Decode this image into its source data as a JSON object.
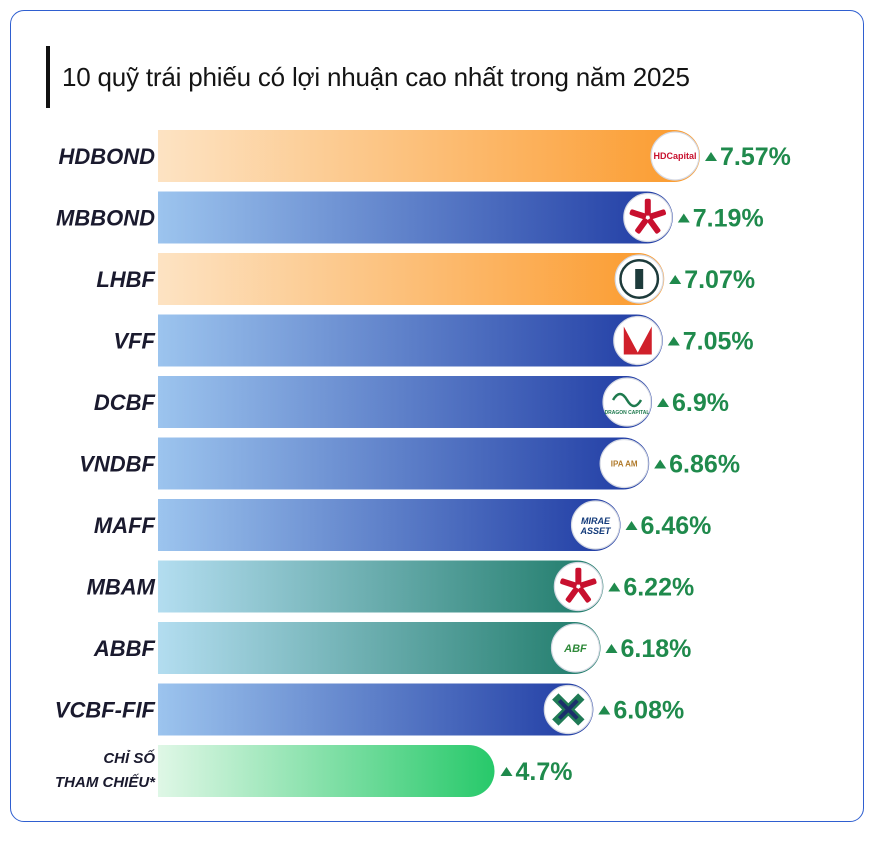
{
  "title": "10 quỹ trái phiếu có lợi nhuận cao nhất trong năm 2025",
  "chart_data": {
    "type": "bar",
    "orientation": "horizontal",
    "title": "10 quỹ trái phiếu có lợi nhuận cao nhất trong năm 2025",
    "xlabel": "",
    "ylabel": "",
    "unit": "%",
    "xlim": [
      0,
      7.57
    ],
    "grid": false,
    "legend": "none",
    "categories": [
      "HDBOND",
      "MBBOND",
      "LHBF",
      "VFF",
      "DCBF",
      "VNDBF",
      "MAFF",
      "MBAM",
      "ABBF",
      "VCBF-FIF",
      "CHỈ SỐ THAM CHIẾU*"
    ],
    "category_lines": [
      [
        "HDBOND"
      ],
      [
        "MBBOND"
      ],
      [
        "LHBF"
      ],
      [
        "VFF"
      ],
      [
        "DCBF"
      ],
      [
        "VNDBF"
      ],
      [
        "MAFF"
      ],
      [
        "MBAM"
      ],
      [
        "ABBF"
      ],
      [
        "VCBF-FIF"
      ],
      [
        "CHỈ SỐ",
        "THAM CHIẾU*"
      ]
    ],
    "values": [
      7.57,
      7.19,
      7.07,
      7.05,
      6.9,
      6.86,
      6.46,
      6.22,
      6.18,
      6.08,
      4.7
    ],
    "value_labels": [
      "7.57%",
      "7.19%",
      "7.07%",
      "7.05%",
      "6.9%",
      "6.86%",
      "6.46%",
      "6.22%",
      "6.18%",
      "6.08%",
      "4.7%"
    ],
    "bar_styles": [
      "orange",
      "blue",
      "orange",
      "blue",
      "blue",
      "blue",
      "blue",
      "teal",
      "teal",
      "blue",
      "green"
    ],
    "logos": [
      "hdcapital-logo",
      "mb-logo",
      "lighthouse-logo",
      "vff-logo",
      "dragon-capital-logo",
      "ipa-am-logo",
      "mirae-asset-logo",
      "mb-logo",
      "abf-logo",
      "vcbf-logo",
      ""
    ],
    "logo_text": [
      "HDCapital",
      "",
      "",
      "",
      "DRAGON CAPITAL",
      "IPA AM",
      "MIRAE ASSET",
      "",
      "ABF",
      "",
      ""
    ],
    "colors": {
      "orange_start": "#fde3c3",
      "orange_end": "#fb9a2c",
      "blue_start": "#9cc4ee",
      "blue_end": "#1e3aa3",
      "teal_start": "#b3ddf0",
      "teal_end": "#1d7a68",
      "green_start": "#dff7e6",
      "green_end": "#27c96a",
      "value_text": "#1f8a4c",
      "border": "#2f5fd0"
    }
  }
}
